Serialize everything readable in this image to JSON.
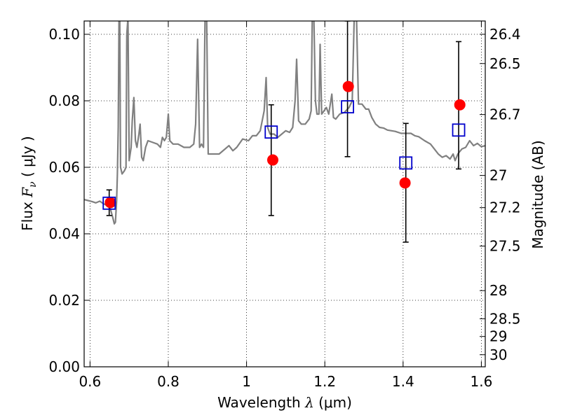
{
  "chart_data": {
    "type": "scatter",
    "title": "",
    "xlabel": {
      "prefix": "Wavelength  ",
      "symbol": "λ",
      "unit": " (μm)"
    },
    "ylabel": {
      "prefix": "Flux  ",
      "symbol": "F",
      "subscript": "ν",
      "unit": "  ( μJy )"
    },
    "y2label": "Magnitude (AB)",
    "xlim": [
      0.585,
      1.61
    ],
    "ylim": [
      0.0,
      0.104
    ],
    "grid": true,
    "grid_style": "dotted",
    "x_ticks": [
      {
        "value": 0.6,
        "label": "0.6"
      },
      {
        "value": 0.8,
        "label": "0.8"
      },
      {
        "value": 1.0,
        "label": "1"
      },
      {
        "value": 1.2,
        "label": "1.2"
      },
      {
        "value": 1.4,
        "label": "1.4"
      },
      {
        "value": 1.6,
        "label": "1.6"
      }
    ],
    "y_ticks": [
      {
        "value": 0.0,
        "label": "0.00"
      },
      {
        "value": 0.02,
        "label": "0.02"
      },
      {
        "value": 0.04,
        "label": "0.04"
      },
      {
        "value": 0.06,
        "label": "0.06"
      },
      {
        "value": 0.08,
        "label": "0.08"
      },
      {
        "value": 0.1,
        "label": "0.10"
      }
    ],
    "y2_ticks": [
      {
        "magnitude": 26.4,
        "label": "26.4"
      },
      {
        "magnitude": 26.5,
        "label": "26.5"
      },
      {
        "magnitude": 26.7,
        "label": "26.7"
      },
      {
        "magnitude": 27.0,
        "label": "27"
      },
      {
        "magnitude": 27.2,
        "label": "27.2"
      },
      {
        "magnitude": 27.5,
        "label": "27.5"
      },
      {
        "magnitude": 28.0,
        "label": "28"
      },
      {
        "magnitude": 28.5,
        "label": "28.5"
      },
      {
        "magnitude": 29.0,
        "label": "29"
      },
      {
        "magnitude": 30.0,
        "label": "30"
      }
    ],
    "colors": {
      "spectrum": "#808080",
      "observed": "#ff0000",
      "model": "#0000cc",
      "errorbar": "#000000"
    },
    "series": [
      {
        "type": "line",
        "points": [
          [
            0.585,
            0.0503
          ],
          [
            0.595,
            0.05
          ],
          [
            0.605,
            0.0497
          ],
          [
            0.615,
            0.0493
          ],
          [
            0.625,
            0.0498
          ],
          [
            0.635,
            0.049
          ],
          [
            0.645,
            0.0485
          ],
          [
            0.652,
            0.0475
          ],
          [
            0.658,
            0.045
          ],
          [
            0.662,
            0.043
          ],
          [
            0.665,
            0.0435
          ],
          [
            0.668,
            0.05
          ],
          [
            0.67,
            0.058
          ],
          [
            0.672,
            0.072
          ],
          [
            0.674,
            0.105
          ],
          [
            0.676,
            0.105
          ],
          [
            0.678,
            0.06
          ],
          [
            0.682,
            0.058
          ],
          [
            0.688,
            0.059
          ],
          [
            0.692,
            0.06
          ],
          [
            0.694,
            0.1
          ],
          [
            0.697,
            0.105
          ],
          [
            0.7,
            0.062
          ],
          [
            0.705,
            0.066
          ],
          [
            0.708,
            0.074
          ],
          [
            0.712,
            0.081
          ],
          [
            0.716,
            0.068
          ],
          [
            0.72,
            0.066
          ],
          [
            0.725,
            0.07
          ],
          [
            0.728,
            0.073
          ],
          [
            0.732,
            0.063
          ],
          [
            0.736,
            0.062
          ],
          [
            0.742,
            0.066
          ],
          [
            0.748,
            0.068
          ],
          [
            0.76,
            0.0675
          ],
          [
            0.772,
            0.067
          ],
          [
            0.78,
            0.066
          ],
          [
            0.785,
            0.069
          ],
          [
            0.79,
            0.068
          ],
          [
            0.795,
            0.069
          ],
          [
            0.8,
            0.076
          ],
          [
            0.804,
            0.068
          ],
          [
            0.812,
            0.067
          ],
          [
            0.825,
            0.067
          ],
          [
            0.84,
            0.066
          ],
          [
            0.855,
            0.066
          ],
          [
            0.865,
            0.067
          ],
          [
            0.87,
            0.073
          ],
          [
            0.875,
            0.0985
          ],
          [
            0.88,
            0.066
          ],
          [
            0.885,
            0.067
          ],
          [
            0.89,
            0.066
          ],
          [
            0.894,
            0.105
          ],
          [
            0.898,
            0.105
          ],
          [
            0.902,
            0.064
          ],
          [
            0.915,
            0.064
          ],
          [
            0.93,
            0.064
          ],
          [
            0.945,
            0.0655
          ],
          [
            0.955,
            0.0665
          ],
          [
            0.965,
            0.065
          ],
          [
            0.975,
            0.066
          ],
          [
            0.99,
            0.0685
          ],
          [
            1.005,
            0.068
          ],
          [
            1.015,
            0.0695
          ],
          [
            1.025,
            0.0695
          ],
          [
            1.035,
            0.071
          ],
          [
            1.045,
            0.077
          ],
          [
            1.05,
            0.087
          ],
          [
            1.054,
            0.072
          ],
          [
            1.06,
            0.07
          ],
          [
            1.07,
            0.07
          ],
          [
            1.08,
            0.069
          ],
          [
            1.09,
            0.07
          ],
          [
            1.1,
            0.071
          ],
          [
            1.11,
            0.0705
          ],
          [
            1.118,
            0.072
          ],
          [
            1.124,
            0.08
          ],
          [
            1.128,
            0.0925
          ],
          [
            1.133,
            0.074
          ],
          [
            1.14,
            0.073
          ],
          [
            1.15,
            0.073
          ],
          [
            1.16,
            0.0745
          ],
          [
            1.165,
            0.077
          ],
          [
            1.168,
            0.105
          ],
          [
            1.172,
            0.105
          ],
          [
            1.176,
            0.08
          ],
          [
            1.18,
            0.076
          ],
          [
            1.185,
            0.076
          ],
          [
            1.188,
            0.097
          ],
          [
            1.192,
            0.076
          ],
          [
            1.198,
            0.077
          ],
          [
            1.204,
            0.078
          ],
          [
            1.21,
            0.076
          ],
          [
            1.218,
            0.082
          ],
          [
            1.222,
            0.075
          ],
          [
            1.228,
            0.0745
          ],
          [
            1.238,
            0.076
          ],
          [
            1.25,
            0.0765
          ],
          [
            1.262,
            0.078
          ],
          [
            1.27,
            0.08
          ],
          [
            1.275,
            0.105
          ],
          [
            1.281,
            0.105
          ],
          [
            1.286,
            0.079
          ],
          [
            1.295,
            0.079
          ],
          [
            1.305,
            0.0775
          ],
          [
            1.312,
            0.0775
          ],
          [
            1.32,
            0.075
          ],
          [
            1.33,
            0.073
          ],
          [
            1.34,
            0.072
          ],
          [
            1.35,
            0.0718
          ],
          [
            1.36,
            0.0712
          ],
          [
            1.38,
            0.0708
          ],
          [
            1.395,
            0.0702
          ],
          [
            1.41,
            0.0702
          ],
          [
            1.42,
            0.0702
          ],
          [
            1.43,
            0.0695
          ],
          [
            1.44,
            0.0692
          ],
          [
            1.455,
            0.068
          ],
          [
            1.47,
            0.067
          ],
          [
            1.48,
            0.0655
          ],
          [
            1.49,
            0.064
          ],
          [
            1.5,
            0.063
          ],
          [
            1.51,
            0.0635
          ],
          [
            1.52,
            0.0625
          ],
          [
            1.528,
            0.064
          ],
          [
            1.533,
            0.062
          ],
          [
            1.54,
            0.064
          ],
          [
            1.55,
            0.0655
          ],
          [
            1.56,
            0.066
          ],
          [
            1.57,
            0.068
          ],
          [
            1.58,
            0.0665
          ],
          [
            1.59,
            0.0672
          ],
          [
            1.6,
            0.0662
          ],
          [
            1.61,
            0.0665
          ]
        ]
      },
      {
        "type": "scatter",
        "marker": "circle",
        "points": [
          {
            "x": 0.652,
            "y": 0.0494
          },
          {
            "x": 1.067,
            "y": 0.0622
          },
          {
            "x": 1.26,
            "y": 0.0843
          },
          {
            "x": 1.405,
            "y": 0.0553
          },
          {
            "x": 1.545,
            "y": 0.0788
          }
        ]
      },
      {
        "type": "scatter",
        "marker": "square",
        "points": [
          {
            "x": 0.649,
            "y": 0.0492,
            "yerr": [
              0.0455,
              0.0532
            ]
          },
          {
            "x": 1.063,
            "y": 0.0706,
            "yerr": [
              0.0455,
              0.0788
            ]
          },
          {
            "x": 1.258,
            "y": 0.0782,
            "yerr": [
              0.0632,
              0.104
            ]
          },
          {
            "x": 1.407,
            "y": 0.0613,
            "yerr": [
              0.0375,
              0.0732
            ]
          },
          {
            "x": 1.542,
            "y": 0.0712,
            "yerr": [
              0.0595,
              0.0978
            ]
          }
        ]
      }
    ]
  }
}
